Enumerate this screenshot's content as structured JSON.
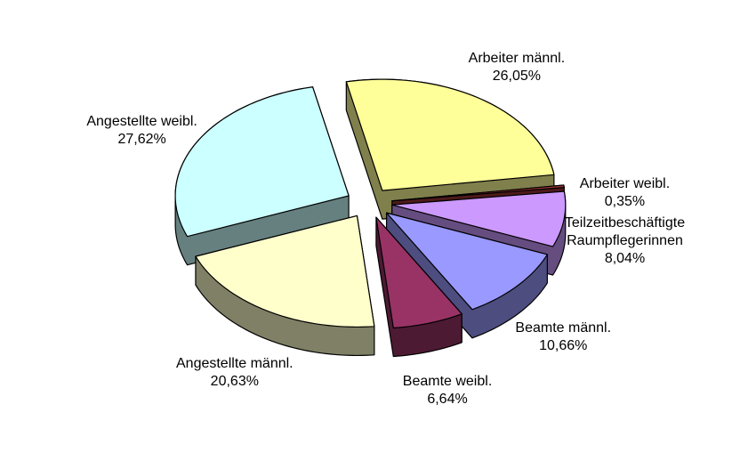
{
  "chart_data": {
    "type": "pie",
    "categories": [
      "Arbeiter männl.",
      "Arbeiter weibl.",
      "Teilzeitbeschäftigte Raumpflegerinnen",
      "Beamte männl.",
      "Beamte weibl.",
      "Angestellte männl.",
      "Angestellte weibl."
    ],
    "values": [
      26.05,
      0.35,
      8.04,
      10.66,
      6.64,
      20.63,
      27.62
    ],
    "value_labels": [
      "26,05%",
      "0,35%",
      "8,04%",
      "10,66%",
      "6,64%",
      "20,63%",
      "27,62%"
    ],
    "colors": [
      "#ffff99",
      "#993333",
      "#cc99ff",
      "#9999ff",
      "#993366",
      "#ffffcc",
      "#ccffff"
    ]
  }
}
